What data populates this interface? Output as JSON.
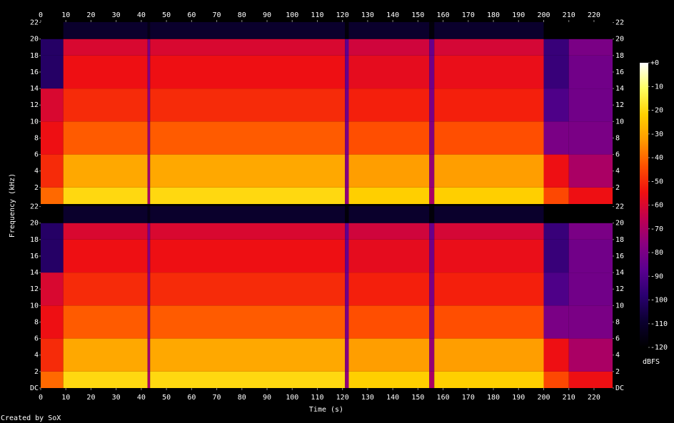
{
  "chart_data": [
    {
      "type": "spectrogram",
      "x": [
        0,
        9,
        42.5,
        43.5,
        121,
        122.5,
        154.5,
        156.5,
        200,
        210,
        227.4
      ],
      "bands": [
        0,
        2,
        6,
        10,
        14,
        18,
        20,
        22.05
      ],
      "z": [
        [
          -40,
          -20,
          -70,
          -20,
          -75,
          -22,
          -70,
          -22,
          -45,
          -55
        ],
        [
          -50,
          -30,
          -72,
          -30,
          -78,
          -32,
          -74,
          -32,
          -55,
          -70
        ],
        [
          -55,
          -42,
          -74,
          -42,
          -80,
          -44,
          -78,
          -44,
          -80,
          -80
        ],
        [
          -60,
          -50,
          -76,
          -50,
          -82,
          -52,
          -80,
          -52,
          -90,
          -82
        ],
        [
          -100,
          -55,
          -78,
          -55,
          -84,
          -57,
          -82,
          -56,
          -95,
          -82
        ],
        [
          -100,
          -60,
          -80,
          -60,
          -86,
          -62,
          -84,
          -61,
          -95,
          -80
        ],
        [
          -120,
          -110,
          -115,
          -110,
          -118,
          -110,
          -118,
          -110,
          -120,
          -120
        ]
      ],
      "xlim": [
        0,
        227.4
      ],
      "ylim": [
        0,
        22.05
      ],
      "xticks": [
        0,
        10,
        20,
        30,
        40,
        50,
        60,
        70,
        80,
        90,
        100,
        110,
        120,
        130,
        140,
        150,
        160,
        170,
        180,
        190,
        200,
        210,
        220
      ],
      "yticks": [
        2,
        4,
        6,
        8,
        10,
        12,
        14,
        16,
        18,
        20,
        22
      ]
    },
    {
      "type": "spectrogram",
      "x": [
        0,
        9,
        42.5,
        43.5,
        121,
        122.5,
        154.5,
        156.5,
        200,
        210,
        227.4
      ],
      "bands": [
        0,
        2,
        6,
        10,
        14,
        18,
        20,
        22.05
      ],
      "z": [
        [
          -40,
          -20,
          -70,
          -20,
          -75,
          -22,
          -70,
          -22,
          -45,
          -55
        ],
        [
          -50,
          -30,
          -72,
          -30,
          -78,
          -32,
          -74,
          -32,
          -55,
          -70
        ],
        [
          -55,
          -42,
          -74,
          -42,
          -80,
          -44,
          -78,
          -44,
          -80,
          -80
        ],
        [
          -60,
          -50,
          -76,
          -50,
          -82,
          -52,
          -80,
          -52,
          -90,
          -82
        ],
        [
          -100,
          -55,
          -78,
          -55,
          -84,
          -57,
          -82,
          -56,
          -95,
          -82
        ],
        [
          -100,
          -60,
          -80,
          -60,
          -86,
          -62,
          -84,
          -61,
          -95,
          -80
        ],
        [
          -120,
          -110,
          -115,
          -110,
          -118,
          -110,
          -118,
          -110,
          -120,
          -120
        ]
      ],
      "xlim": [
        0,
        227.4
      ],
      "ylim": [
        0,
        22.05
      ],
      "xticks": [
        0,
        10,
        20,
        30,
        40,
        50,
        60,
        70,
        80,
        90,
        100,
        110,
        120,
        130,
        140,
        150,
        160,
        170,
        180,
        190,
        200,
        210,
        220
      ],
      "yticks": [
        {
          "value": 0,
          "label": "DC"
        },
        2,
        4,
        6,
        8,
        10,
        12,
        14,
        16,
        18,
        20,
        22
      ]
    }
  ],
  "xlabel": "Time (s)",
  "ylabel": "Frequency (kHz)",
  "footer": "Created by SoX",
  "colorbar": {
    "label": "dBFS",
    "lim": [
      -120,
      0
    ],
    "ticks": [
      {
        "value": 0,
        "label": "+0"
      },
      -10,
      -20,
      -30,
      -40,
      -50,
      -60,
      -70,
      -80,
      -90,
      -100,
      -110,
      -120
    ],
    "colormap": [
      "#000000",
      "#0b0030",
      "#2a0070",
      "#5a0090",
      "#8a0080",
      "#c00050",
      "#f01010",
      "#ff5000",
      "#ff9a00",
      "#ffd000",
      "#ffff60",
      "#ffffff"
    ]
  }
}
